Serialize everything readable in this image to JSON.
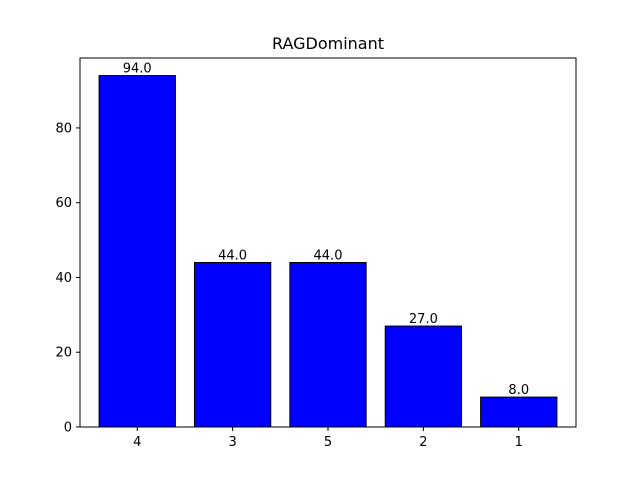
{
  "chart_data": {
    "type": "bar",
    "title": "RAGDominant",
    "categories": [
      "4",
      "3",
      "5",
      "2",
      "1"
    ],
    "values": [
      94.0,
      44.0,
      44.0,
      27.0,
      8.0
    ],
    "value_labels": [
      "94.0",
      "44.0",
      "44.0",
      "27.0",
      "8.0"
    ],
    "xlabel": "",
    "ylabel": "",
    "ylim": [
      0,
      98.7
    ],
    "yticks": [
      0,
      20,
      40,
      60,
      80
    ],
    "grid": false,
    "legend": "none",
    "colors": {
      "bar_fill": "#0000ff",
      "bar_edge": "#000000",
      "axes": "#000000"
    }
  }
}
